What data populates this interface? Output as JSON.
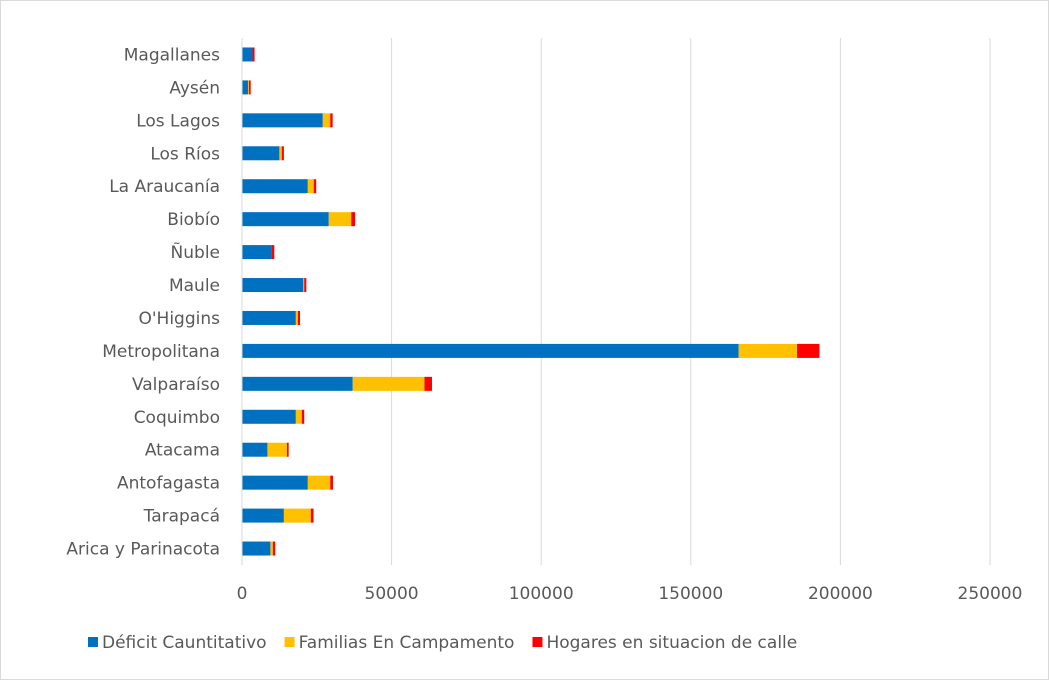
{
  "chart_data": {
    "type": "bar",
    "orientation": "horizontal",
    "stacked": true,
    "categories": [
      "Arica y Parinacota",
      "Tarapacá",
      "Antofagasta",
      "Atacama",
      "Coquimbo",
      "Valparaíso",
      "Metropolitana",
      "O'Higgins",
      "Maule",
      "Ñuble",
      "Biobío",
      "La Araucanía",
      "Los Ríos",
      "Los Lagos",
      "Aysén",
      "Magallanes"
    ],
    "series": [
      {
        "name": "Déficit Cauntitativo",
        "color": "#0070c0",
        "values": [
          9500,
          14000,
          22000,
          8500,
          18000,
          37000,
          166000,
          18000,
          20500,
          10000,
          29000,
          22000,
          12500,
          27000,
          2000,
          3500
        ]
      },
      {
        "name": "Familias En Campamento",
        "color": "#ffc000",
        "values": [
          800,
          9000,
          7500,
          6500,
          2000,
          24000,
          19500,
          700,
          300,
          0,
          7500,
          2000,
          800,
          2500,
          300,
          0
        ]
      },
      {
        "name": "Hogares en situacion de calle",
        "color": "#ff0000",
        "values": [
          800,
          900,
          900,
          600,
          800,
          2500,
          7500,
          700,
          700,
          800,
          1300,
          800,
          700,
          800,
          600,
          700
        ]
      }
    ],
    "xlim": [
      0,
      250000
    ],
    "x_ticks": [
      "0",
      "50000",
      "100000",
      "150000",
      "200000",
      "250000"
    ],
    "grid": true,
    "legend_position": "bottom",
    "title": "",
    "xlabel": "",
    "ylabel": ""
  }
}
